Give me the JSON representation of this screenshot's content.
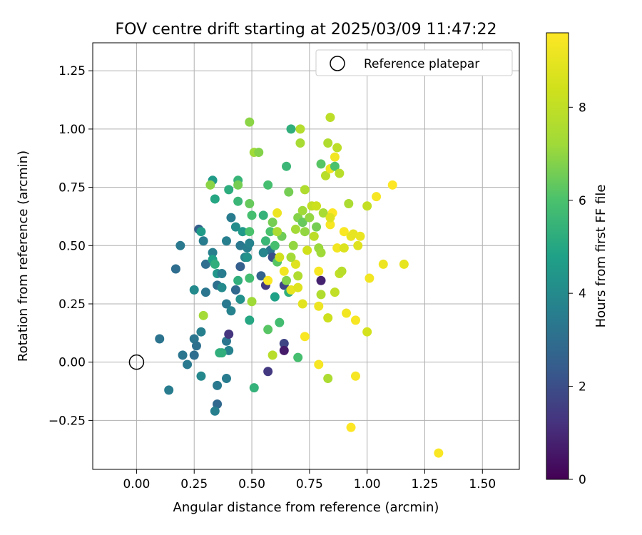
{
  "chart_data": {
    "type": "scatter",
    "title": "FOV centre drift starting at 2025/03/09 11:47:22",
    "xlabel": "Angular distance from reference (arcmin)",
    "ylabel": "Rotation from reference (arcmin)",
    "xlim": [
      -0.19,
      1.66
    ],
    "ylim": [
      -0.46,
      1.37
    ],
    "x_ticks": [
      0.0,
      0.25,
      0.5,
      0.75,
      1.0,
      1.25,
      1.5
    ],
    "x_tick_labels": [
      "0.00",
      "0.25",
      "0.50",
      "0.75",
      "1.00",
      "1.25",
      "1.50"
    ],
    "y_ticks": [
      -0.25,
      0.0,
      0.25,
      0.5,
      0.75,
      1.0,
      1.25
    ],
    "y_tick_labels": [
      "−0.25",
      "0.00",
      "0.25",
      "0.50",
      "0.75",
      "1.00",
      "1.25"
    ],
    "grid": true,
    "colorbar": {
      "label": "Hours from first FF file",
      "range": [
        0,
        9.6
      ],
      "ticks": [
        0,
        2,
        4,
        6,
        8
      ],
      "tick_labels": [
        "0",
        "2",
        "4",
        "6",
        "8"
      ],
      "colormap": "viridis"
    },
    "legend": {
      "placement": "top-right",
      "entries": [
        {
          "label": "Reference platepar",
          "marker": "open-circle"
        }
      ]
    },
    "reference_point": {
      "x": 0.0,
      "y": 0.0
    },
    "series": [
      {
        "points": [
          [
            0.1,
            0.1,
            3.2
          ],
          [
            0.14,
            -0.12,
            3.5
          ],
          [
            0.2,
            0.03,
            3.3
          ],
          [
            0.22,
            -0.01,
            3.4
          ],
          [
            0.25,
            0.1,
            3.3
          ],
          [
            0.25,
            0.03,
            3.0
          ],
          [
            0.26,
            0.07,
            3.1
          ],
          [
            0.28,
            0.13,
            3.6
          ],
          [
            0.28,
            -0.06,
            3.9
          ],
          [
            0.35,
            -0.1,
            3.4
          ],
          [
            0.35,
            -0.18,
            2.8
          ],
          [
            0.34,
            -0.21,
            3.6
          ],
          [
            0.39,
            -0.07,
            3.5
          ],
          [
            0.36,
            0.04,
            5.3
          ],
          [
            0.39,
            0.09,
            3.3
          ],
          [
            0.4,
            0.05,
            3.7
          ],
          [
            0.4,
            0.12,
            1.3
          ],
          [
            0.17,
            0.4,
            3.0
          ],
          [
            0.19,
            0.5,
            3.4
          ],
          [
            0.25,
            0.31,
            4.0
          ],
          [
            0.27,
            0.57,
            2.5
          ],
          [
            0.28,
            0.56,
            4.6
          ],
          [
            0.3,
            0.3,
            3.3
          ],
          [
            0.3,
            0.42,
            3.0
          ],
          [
            0.29,
            0.52,
            3.5
          ],
          [
            0.33,
            0.47,
            3.6
          ],
          [
            0.33,
            0.44,
            4.8
          ],
          [
            0.34,
            0.42,
            5.3
          ],
          [
            0.35,
            0.38,
            4.4
          ],
          [
            0.35,
            0.33,
            3.1
          ],
          [
            0.37,
            0.32,
            4.0
          ],
          [
            0.37,
            0.38,
            3.5
          ],
          [
            0.39,
            0.25,
            3.4
          ],
          [
            0.39,
            0.52,
            3.6
          ],
          [
            0.41,
            0.22,
            3.7
          ],
          [
            0.41,
            0.62,
            3.5
          ],
          [
            0.43,
            0.31,
            2.8
          ],
          [
            0.43,
            0.58,
            4.1
          ],
          [
            0.44,
            0.35,
            5.3
          ],
          [
            0.45,
            0.27,
            4.2
          ],
          [
            0.45,
            0.5,
            3.4
          ],
          [
            0.45,
            0.41,
            2.5
          ],
          [
            0.46,
            0.56,
            4.5
          ],
          [
            0.47,
            0.45,
            3.8
          ],
          [
            0.48,
            0.49,
            3.6
          ],
          [
            0.48,
            0.45,
            4.3
          ],
          [
            0.49,
            0.51,
            3.7
          ],
          [
            0.49,
            0.18,
            5.0
          ],
          [
            0.49,
            0.36,
            5.8
          ],
          [
            0.5,
            0.63,
            5.9
          ],
          [
            0.5,
            0.26,
            7.2
          ],
          [
            0.49,
            0.56,
            6.0
          ],
          [
            0.49,
            0.68,
            6.4
          ],
          [
            0.33,
            0.78,
            4.6
          ],
          [
            0.34,
            0.7,
            5.0
          ],
          [
            0.32,
            0.76,
            6.9
          ],
          [
            0.29,
            0.2,
            7.3
          ],
          [
            0.37,
            0.04,
            5.3
          ],
          [
            0.4,
            0.74,
            5.2
          ],
          [
            0.44,
            0.78,
            5.5
          ],
          [
            0.44,
            0.76,
            6.6
          ],
          [
            0.44,
            0.69,
            5.6
          ],
          [
            0.49,
            1.03,
            6.9
          ],
          [
            0.51,
            0.9,
            7.2
          ],
          [
            0.53,
            0.9,
            6.8
          ],
          [
            0.51,
            -0.11,
            5.4
          ],
          [
            0.54,
            0.37,
            2.6
          ],
          [
            0.55,
            0.63,
            5.4
          ],
          [
            0.56,
            0.33,
            1.4
          ],
          [
            0.56,
            0.52,
            5.6
          ],
          [
            0.57,
            0.76,
            5.9
          ],
          [
            0.57,
            0.14,
            6.2
          ],
          [
            0.57,
            -0.04,
            1.4
          ],
          [
            0.58,
            0.56,
            6.0
          ],
          [
            0.58,
            0.48,
            3.2
          ],
          [
            0.59,
            0.45,
            2.0
          ],
          [
            0.59,
            0.6,
            6.6
          ],
          [
            0.6,
            0.28,
            4.8
          ],
          [
            0.6,
            0.5,
            5.9
          ],
          [
            0.61,
            0.43,
            6.2
          ],
          [
            0.61,
            0.64,
            9.2
          ],
          [
            0.62,
            0.17,
            5.8
          ],
          [
            0.63,
            0.54,
            6.5
          ],
          [
            0.64,
            0.33,
            1.7
          ],
          [
            0.64,
            0.08,
            1.7
          ],
          [
            0.64,
            0.05,
            0.6
          ],
          [
            0.65,
            0.84,
            5.6
          ],
          [
            0.66,
            0.73,
            6.6
          ],
          [
            0.66,
            0.3,
            5.3
          ],
          [
            0.67,
            1.0,
            5.3
          ],
          [
            0.68,
            0.5,
            7.0
          ],
          [
            0.69,
            0.57,
            7.3
          ],
          [
            0.69,
            0.42,
            8.8
          ],
          [
            0.7,
            0.37,
            7.6
          ],
          [
            0.7,
            0.62,
            6.8
          ],
          [
            0.7,
            0.02,
            5.9
          ],
          [
            0.71,
            0.94,
            7.4
          ],
          [
            0.71,
            1.0,
            7.7
          ],
          [
            0.72,
            0.25,
            8.9
          ],
          [
            0.72,
            0.6,
            6.4
          ],
          [
            0.73,
            0.11,
            9.5
          ],
          [
            0.73,
            0.56,
            7.0
          ],
          [
            0.73,
            0.74,
            7.6
          ],
          [
            0.74,
            0.48,
            8.4
          ],
          [
            0.75,
            0.62,
            7.0
          ],
          [
            0.76,
            0.67,
            8.1
          ],
          [
            0.77,
            0.54,
            7.9
          ],
          [
            0.78,
            0.67,
            8.3
          ],
          [
            0.79,
            0.24,
            9.2
          ],
          [
            0.79,
            0.49,
            7.1
          ],
          [
            0.8,
            0.35,
            0.8
          ],
          [
            0.8,
            0.85,
            6.2
          ],
          [
            0.8,
            0.29,
            7.6
          ],
          [
            0.81,
            0.64,
            7.4
          ],
          [
            0.82,
            0.8,
            7.8
          ],
          [
            0.83,
            0.19,
            8.3
          ],
          [
            0.83,
            0.94,
            7.6
          ],
          [
            0.84,
            0.83,
            9.2
          ],
          [
            0.84,
            0.59,
            9.4
          ],
          [
            0.84,
            1.05,
            7.9
          ],
          [
            0.85,
            0.64,
            9.6
          ],
          [
            0.86,
            0.88,
            9.3
          ],
          [
            0.86,
            0.84,
            6.0
          ],
          [
            0.86,
            0.3,
            8.0
          ],
          [
            0.87,
            0.92,
            7.9
          ],
          [
            0.87,
            0.49,
            9.3
          ],
          [
            0.88,
            0.81,
            7.8
          ],
          [
            0.88,
            0.38,
            8.0
          ],
          [
            0.89,
            0.39,
            7.8
          ],
          [
            0.9,
            0.56,
            9.5
          ],
          [
            0.9,
            0.49,
            8.7
          ],
          [
            0.91,
            0.21,
            9.3
          ],
          [
            0.92,
            0.68,
            7.5
          ],
          [
            0.93,
            -0.28,
            9.6
          ],
          [
            0.93,
            0.54,
            9.1
          ],
          [
            0.94,
            0.55,
            9.0
          ],
          [
            0.95,
            0.18,
            9.4
          ],
          [
            0.95,
            -0.06,
            9.4
          ],
          [
            0.96,
            0.5,
            8.8
          ],
          [
            0.97,
            0.54,
            9.1
          ],
          [
            1.0,
            0.67,
            8.1
          ],
          [
            1.0,
            0.13,
            8.5
          ],
          [
            1.01,
            0.36,
            9.3
          ],
          [
            1.04,
            0.71,
            9.4
          ],
          [
            1.07,
            0.42,
            9.2
          ],
          [
            1.11,
            0.76,
            9.6
          ],
          [
            1.16,
            0.42,
            9.0
          ],
          [
            1.31,
            -0.39,
            9.5
          ],
          [
            0.79,
            -0.01,
            9.4
          ],
          [
            0.83,
            -0.07,
            7.5
          ],
          [
            0.62,
            0.45,
            8.4
          ],
          [
            0.67,
            0.45,
            7.3
          ],
          [
            0.79,
            0.39,
            9.4
          ],
          [
            0.59,
            0.03,
            7.8
          ],
          [
            0.72,
            0.65,
            7.2
          ],
          [
            0.84,
            0.62,
            8.8
          ],
          [
            0.78,
            0.58,
            6.6
          ],
          [
            0.65,
            0.35,
            6.8
          ],
          [
            0.64,
            0.39,
            9.3
          ],
          [
            0.57,
            0.35,
            9.5
          ],
          [
            0.67,
            0.31,
            9.0
          ],
          [
            0.7,
            0.32,
            8.8
          ],
          [
            0.61,
            0.56,
            7.5
          ],
          [
            0.8,
            0.47,
            7.2
          ],
          [
            0.55,
            0.47,
            3.8
          ]
        ]
      }
    ]
  }
}
